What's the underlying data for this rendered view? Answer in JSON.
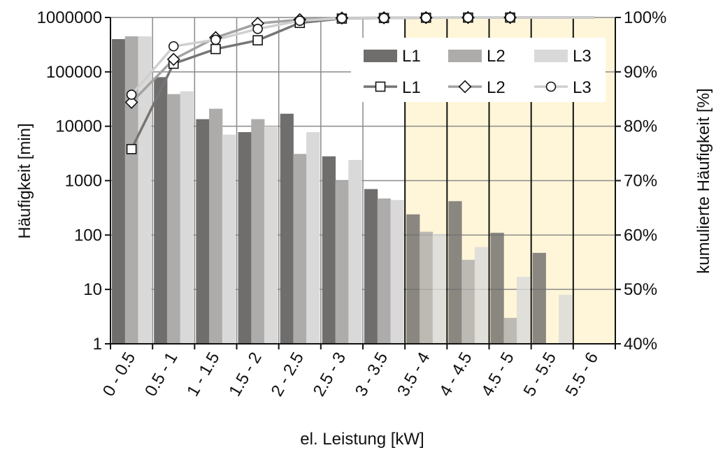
{
  "chart_data": {
    "type": "bar",
    "categories": [
      "0 - 0.5",
      "0.5 - 1",
      "1 - 1.5",
      "1.5 - 2",
      "2 - 2.5",
      "2.5 - 3",
      "3 - 3.5",
      "3.5 - 4",
      "4 - 4.5",
      "4.5 - 5",
      "5 - 5.5",
      "5.5 - 6"
    ],
    "bar_series": [
      {
        "name": "L1",
        "color": "#706e6d",
        "values": [
          400000,
          80000,
          13500,
          7800,
          17000,
          2800,
          700,
          240,
          420,
          110,
          47,
          null
        ]
      },
      {
        "name": "L2",
        "color": "#aeacab",
        "values": [
          450000,
          39000,
          21000,
          13500,
          3100,
          1000,
          470,
          115,
          35,
          3,
          null,
          null
        ]
      },
      {
        "name": "L3",
        "color": "#d9d9d9",
        "values": [
          450000,
          44000,
          7000,
          10000,
          7800,
          2400,
          440,
          105,
          60,
          17,
          8,
          null
        ]
      }
    ],
    "line_series": [
      {
        "name": "L1",
        "marker": "square",
        "color": "#777574",
        "values": [
          75.8,
          91.5,
          94.2,
          95.8,
          99.0,
          99.8,
          99.9,
          99.95,
          99.98,
          99.99,
          null,
          null
        ]
      },
      {
        "name": "L2",
        "marker": "diamond",
        "color": "#a4a2a1",
        "values": [
          84.4,
          92.3,
          96.3,
          98.9,
          99.6,
          99.9,
          99.95,
          99.97,
          99.99,
          99.99,
          null,
          null
        ]
      },
      {
        "name": "L3",
        "marker": "circle",
        "color": "#cfcfcf",
        "values": [
          85.8,
          94.7,
          95.9,
          97.9,
          99.4,
          99.85,
          99.9,
          99.95,
          99.97,
          99.99,
          null,
          null
        ]
      }
    ],
    "y_left": {
      "label": "Häufigkeit [min]",
      "scale": "log",
      "ticks": [
        "1",
        "10",
        "100",
        "1000",
        "10000",
        "100000",
        "1000000"
      ],
      "range": [
        1,
        1000000
      ]
    },
    "y_right": {
      "label": "kumulierte Häufigkeit [%]",
      "ticks": [
        "40%",
        "50%",
        "60%",
        "70%",
        "80%",
        "90%",
        "100%"
      ],
      "range": [
        40,
        100
      ]
    },
    "xlabel": "el. Leistung [kW]",
    "highlight": {
      "from_category": "3.5 - 4",
      "to_category": "5.5 - 6",
      "color": "#fff6d9"
    },
    "grid": true,
    "legend": {
      "position": "top-right",
      "bar_labels": [
        "L1",
        "L2",
        "L3"
      ],
      "line_labels": [
        "L1",
        "L2",
        "L3"
      ]
    }
  }
}
